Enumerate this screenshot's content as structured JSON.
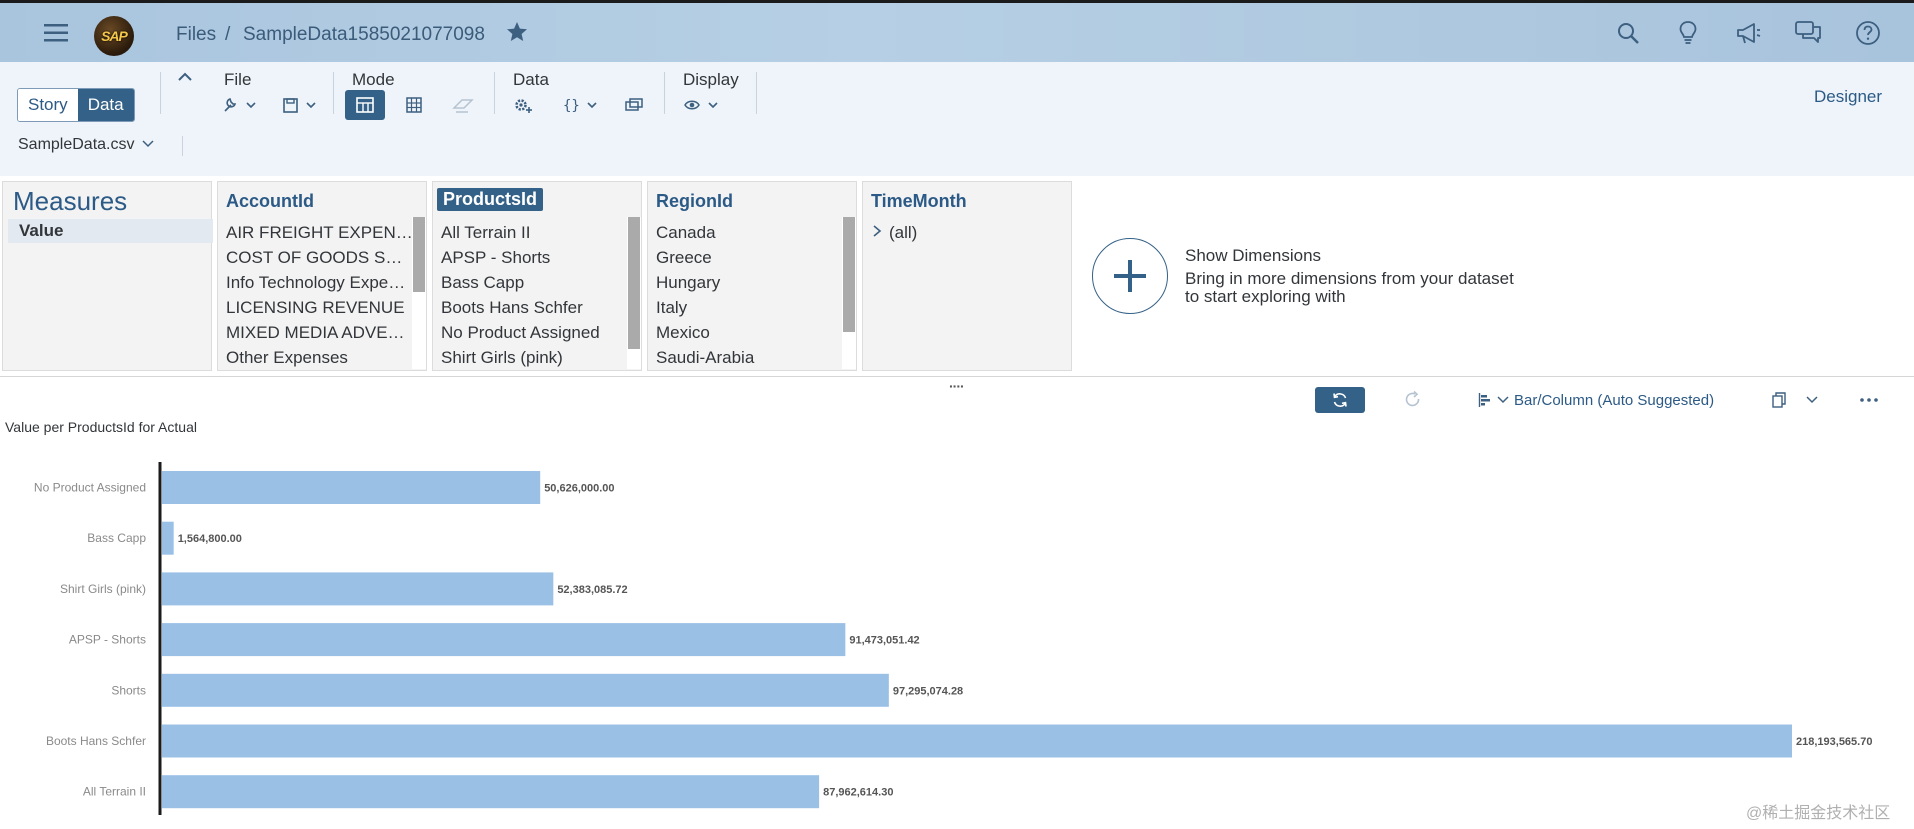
{
  "shell": {
    "breadcrumb_root": "Files",
    "breadcrumb_sep": "/",
    "file_name": "SampleData1585021077098",
    "logo_text": "SAP",
    "icons": [
      "menu-icon",
      "search-icon",
      "lightbulb-icon",
      "megaphone-icon",
      "chat-icon",
      "help-icon",
      "star-icon"
    ]
  },
  "toolbar": {
    "story_label": "Story",
    "data_label": "Data",
    "file_label": "File",
    "mode_label": "Mode",
    "data_group_label": "Data",
    "display_label": "Display",
    "designer_label": "Designer",
    "source_file": "SampleData.csv"
  },
  "panels": {
    "measures": {
      "title": "Measures",
      "items": [
        "Value"
      ]
    },
    "account": {
      "title": "AccountId",
      "items": [
        "AIR FREIGHT EXPEN…",
        "COST OF GOODS S…",
        "Info Technology Expe…",
        "LICENSING REVENUE",
        "MIXED MEDIA ADVE…",
        "Other Expenses"
      ]
    },
    "products": {
      "title": "ProductsId",
      "items": [
        "All Terrain II",
        "APSP - Shorts",
        "Bass Capp",
        "Boots Hans Schfer",
        "No Product Assigned",
        "Shirt Girls (pink)"
      ]
    },
    "region": {
      "title": "RegionId",
      "items": [
        "Canada",
        "Greece",
        "Hungary",
        "Italy",
        "Mexico",
        "Saudi-Arabia"
      ]
    },
    "time": {
      "title": "TimeMonth",
      "items": [
        "(all)"
      ]
    }
  },
  "show_dimensions": {
    "title": "Show Dimensions",
    "description": "Bring in more dimensions from your dataset to start exploring with"
  },
  "chart_toolbar": {
    "chart_type_label": "Bar/Column (Auto Suggested)",
    "handle": "····"
  },
  "chart_data": {
    "type": "bar",
    "orientation": "horizontal",
    "title": "Value per ProductsId for Actual",
    "categories": [
      "No Product Assigned",
      "Bass Capp",
      "Shirt Girls (pink)",
      "APSP - Shorts",
      "Shorts",
      "Boots Hans Schfer",
      "All Terrain II"
    ],
    "values": [
      50626000.0,
      1564800.0,
      52383085.72,
      91473051.42,
      97295074.28,
      218193565.7,
      87962614.3
    ],
    "labels": [
      "50,626,000.00",
      "1,564,800.00",
      "52,383,085.72",
      "91,473,051.42",
      "97,295,074.28",
      "218,193,565.70",
      "87,962,614.30"
    ],
    "bar_color": "#9bc0e6",
    "grid": false
  },
  "watermark": "@稀土掘金技术社区",
  "colors": {
    "accent": "#346187",
    "link": "#2c5a86"
  }
}
